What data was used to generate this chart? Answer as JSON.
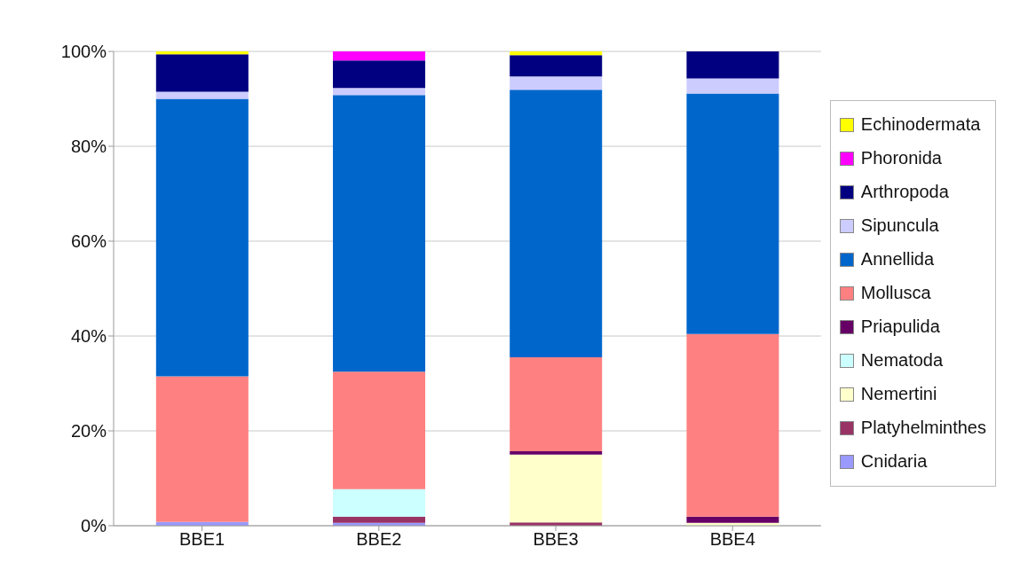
{
  "chart_data": {
    "type": "bar",
    "stacked": true,
    "categories": [
      "BBE1",
      "BBE2",
      "BBE3",
      "BBE4"
    ],
    "ylim": [
      0,
      100
    ],
    "yticks": [
      {
        "value": 0,
        "label": "0%"
      },
      {
        "value": 20,
        "label": "20%"
      },
      {
        "value": 40,
        "label": "40%"
      },
      {
        "value": 60,
        "label": "60%"
      },
      {
        "value": 80,
        "label": "80%"
      },
      {
        "value": 100,
        "label": "100%"
      }
    ],
    "grid": "y",
    "legend": "right",
    "series": [
      {
        "name": "Cnidaria",
        "color": "#9999ff",
        "values": [
          0.8,
          0.6,
          0,
          0
        ]
      },
      {
        "name": "Platyhelminthes",
        "color": "#993366",
        "values": [
          0,
          1.3,
          0.7,
          0
        ]
      },
      {
        "name": "Nemertini",
        "color": "#ffffcc",
        "values": [
          0,
          0,
          14.3,
          0.6
        ]
      },
      {
        "name": "Nematoda",
        "color": "#ccffff",
        "values": [
          0,
          5.8,
          0,
          0
        ]
      },
      {
        "name": "Priapulida",
        "color": "#660066",
        "values": [
          0,
          0,
          0.7,
          1.3
        ]
      },
      {
        "name": "Mollusca",
        "color": "#ff8080",
        "values": [
          30.7,
          24.8,
          19.8,
          38.5
        ]
      },
      {
        "name": "Annellida",
        "color": "#0066cc",
        "values": [
          58.5,
          58.3,
          56.4,
          50.7
        ]
      },
      {
        "name": "Sipuncula",
        "color": "#ccccff",
        "values": [
          1.5,
          1.5,
          2.8,
          3.2
        ]
      },
      {
        "name": "Arthropoda",
        "color": "#000080",
        "values": [
          7.9,
          5.8,
          4.5,
          5.7
        ]
      },
      {
        "name": "Phoronida",
        "color": "#ff00ff",
        "values": [
          0,
          1.9,
          0,
          0
        ]
      },
      {
        "name": "Echinodermata",
        "color": "#ffff00",
        "values": [
          0.6,
          0,
          0.8,
          0
        ]
      }
    ]
  }
}
